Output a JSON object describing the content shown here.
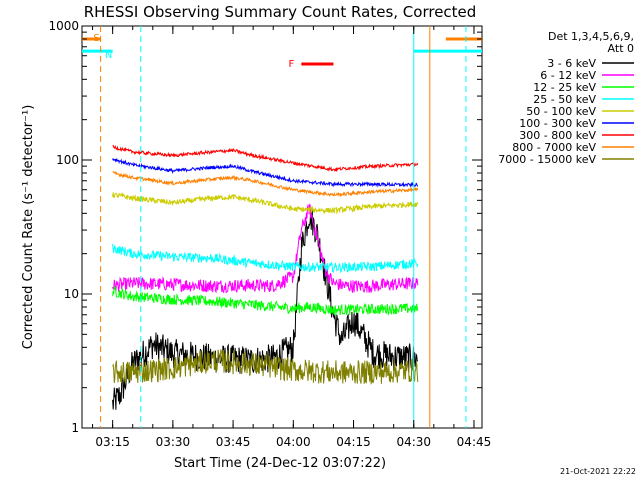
{
  "chart_data": {
    "type": "line",
    "title": "RHESSI Observing Summary Count Rates, Corrected",
    "xlabel": "Start Time (24-Dec-12 03:07:22)",
    "ylabel": "Corrected Count Rate (s⁻¹ detector⁻¹)",
    "y_scale": "log",
    "ylim": [
      1,
      1000
    ],
    "xlim": [
      "03:07:22",
      "04:47:00"
    ],
    "x_ticks": [
      "03:15",
      "03:30",
      "03:45",
      "04:00",
      "04:15",
      "04:30",
      "04:45"
    ],
    "y_ticks": [
      "1",
      "10",
      "100",
      "1000"
    ],
    "legend_header": [
      "Det 1,3,4,5,6,9,",
      "Att 0"
    ],
    "footer_date": "21-Oct-2021 22:22",
    "series": [
      {
        "name": "3 - 6 keV",
        "color": "#000000",
        "x": [
          "03:15",
          "03:17",
          "03:20",
          "03:25",
          "03:30",
          "03:40",
          "03:50",
          "03:55",
          "04:00",
          "04:02",
          "04:04",
          "04:06",
          "04:08",
          "04:10",
          "04:12",
          "04:15",
          "04:20",
          "04:25",
          "04:30",
          "04:31"
        ],
        "values": [
          1.5,
          1.8,
          3.0,
          4.2,
          3.6,
          3.3,
          3.2,
          3.3,
          4.0,
          22,
          40,
          28,
          14,
          7,
          4.5,
          6.5,
          3.6,
          3.4,
          3.3,
          3.3
        ]
      },
      {
        "name": "6 - 12 keV",
        "color": "#ff00ff",
        "x": [
          "03:15",
          "03:20",
          "03:30",
          "03:40",
          "03:50",
          "03:55",
          "04:00",
          "04:02",
          "04:04",
          "04:06",
          "04:08",
          "04:10",
          "04:13",
          "04:18",
          "04:25",
          "04:31"
        ],
        "values": [
          11.5,
          12.0,
          11.8,
          11.5,
          11.6,
          11.5,
          13.5,
          30,
          44,
          26,
          15,
          12,
          11.5,
          11.4,
          11.8,
          12.0
        ]
      },
      {
        "name": "12 - 25 keV",
        "color": "#00ff00",
        "x": [
          "03:15",
          "03:20",
          "03:30",
          "03:40",
          "03:50",
          "04:00",
          "04:04",
          "04:10",
          "04:20",
          "04:31"
        ],
        "values": [
          10.5,
          9.6,
          9.1,
          8.8,
          8.3,
          7.8,
          8.0,
          7.6,
          7.7,
          7.8
        ]
      },
      {
        "name": "25 - 50 keV",
        "color": "#00ffff",
        "x": [
          "03:15",
          "03:20",
          "03:30",
          "03:40",
          "03:50",
          "04:00",
          "04:10",
          "04:20",
          "04:31"
        ],
        "values": [
          22,
          20,
          19,
          18.5,
          17,
          16,
          15.8,
          16,
          17
        ]
      },
      {
        "name": "50 - 100 keV",
        "color": "#cccc00",
        "x": [
          "03:15",
          "03:20",
          "03:30",
          "03:40",
          "03:45",
          "03:50",
          "04:00",
          "04:10",
          "04:20",
          "04:31"
        ],
        "values": [
          55,
          52,
          48,
          52,
          53,
          50,
          43,
          42,
          45,
          47
        ]
      },
      {
        "name": "100 - 300 keV",
        "color": "#0000ff",
        "x": [
          "03:15",
          "03:20",
          "03:30",
          "03:40",
          "03:45",
          "03:50",
          "04:00",
          "04:10",
          "04:20",
          "04:31"
        ],
        "values": [
          102,
          92,
          83,
          88,
          90,
          82,
          70,
          66,
          66,
          65
        ]
      },
      {
        "name": "300 - 800 keV",
        "color": "#ff0000",
        "x": [
          "03:15",
          "03:20",
          "03:30",
          "03:40",
          "03:45",
          "03:50",
          "04:00",
          "04:10",
          "04:20",
          "04:31"
        ],
        "values": [
          125,
          115,
          108,
          115,
          118,
          108,
          95,
          85,
          90,
          93
        ]
      },
      {
        "name": "800 - 7000 keV",
        "color": "#ff8000",
        "x": [
          "03:15",
          "03:20",
          "03:30",
          "03:40",
          "03:45",
          "03:50",
          "04:00",
          "04:10",
          "04:20",
          "04:31"
        ],
        "values": [
          80,
          74,
          67,
          72,
          74,
          70,
          60,
          55,
          58,
          60
        ]
      },
      {
        "name": "7000 - 15000 keV",
        "color": "#808000",
        "x": [
          "03:15",
          "03:20",
          "03:30",
          "03:40",
          "03:50",
          "04:00",
          "04:10",
          "04:20",
          "04:31"
        ],
        "values": [
          2.6,
          2.6,
          2.8,
          3.2,
          3.0,
          2.7,
          2.6,
          2.6,
          2.7
        ]
      }
    ],
    "flags": [
      {
        "label": "S",
        "color": "#ff8000",
        "x": [
          "03:07:22",
          "03:12"
        ],
        "value": 800
      },
      {
        "label": "N",
        "color": "#00ffff",
        "x": [
          "03:07:22",
          "03:15"
        ],
        "value": 650
      },
      {
        "label": "F",
        "color": "#ff0000",
        "x": [
          "04:02",
          "04:10"
        ],
        "value": 520
      },
      {
        "label": "",
        "color": "#ff8000",
        "x": [
          "04:38",
          "04:47"
        ],
        "value": 800
      },
      {
        "label": "",
        "color": "#00ffff",
        "x": [
          "04:30",
          "04:47"
        ],
        "value": 650
      }
    ],
    "vlines": [
      {
        "x": "03:12",
        "color": "#ff8000",
        "style": "dashed"
      },
      {
        "x": "03:22",
        "color": "#00ffff",
        "style": "dashed"
      },
      {
        "x": "04:30",
        "color": "#00ffff",
        "style": "solid"
      },
      {
        "x": "04:34",
        "color": "#ff8000",
        "style": "solid"
      },
      {
        "x": "04:43",
        "color": "#00ffff",
        "style": "dashed"
      }
    ],
    "grid": false,
    "legend_position": "top-right"
  }
}
